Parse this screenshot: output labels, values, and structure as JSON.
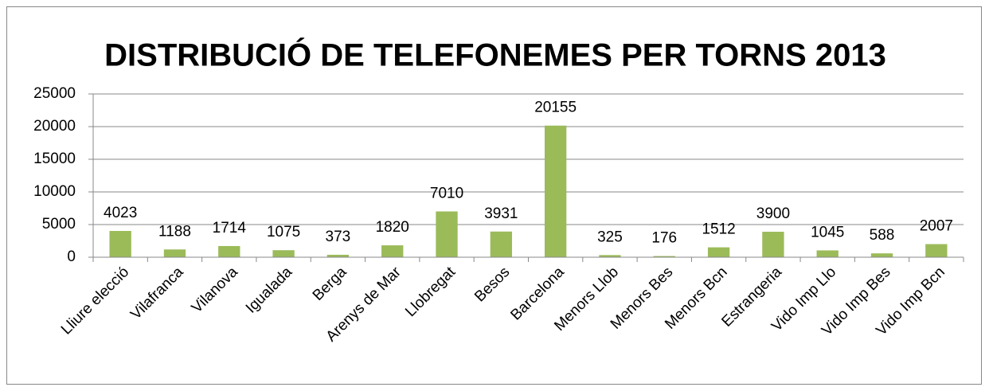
{
  "chart_data": {
    "type": "bar",
    "title": "DISTRIBUCIÓ DE TELEFONEMES PER TORNS 2013",
    "categories": [
      "Lliure elecció",
      "Vilafranca",
      "Vilanova",
      "Igualada",
      "Berga",
      "Arenys de Mar",
      "Llobregat",
      "Besos",
      "Barcelona",
      "Menors Llob",
      "Menors Bes",
      "Menors Bcn",
      "Estrangeria",
      "Vido Imp Llo",
      "Vido Imp Bes",
      "Vido Imp Bcn"
    ],
    "values": [
      4023,
      1188,
      1714,
      1075,
      373,
      1820,
      7010,
      3931,
      20155,
      325,
      176,
      1512,
      3900,
      1045,
      588,
      2007
    ],
    "color": "#9bbb59",
    "ylim": [
      0,
      25000
    ],
    "yticks": [
      0,
      5000,
      10000,
      15000,
      20000,
      25000
    ],
    "grid": true
  }
}
